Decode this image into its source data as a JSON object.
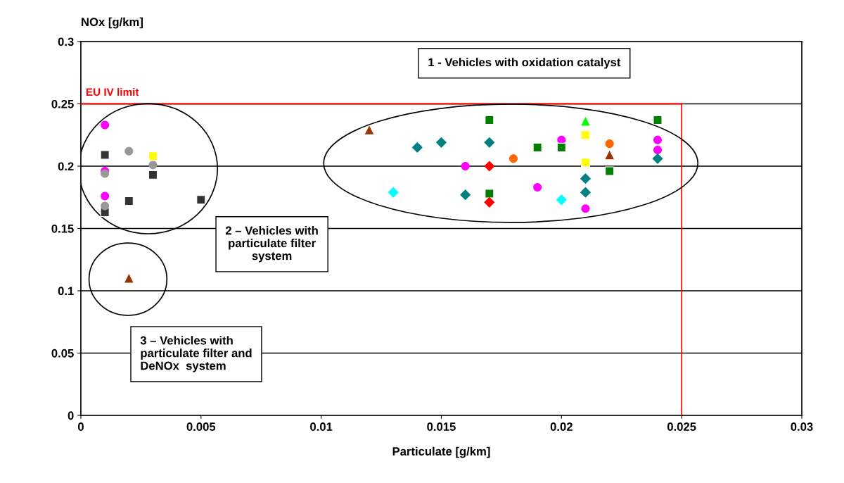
{
  "chart_data": {
    "type": "scatter",
    "xlabel": "Particulate [g/km]",
    "ylabel": "NOx [g/km]",
    "xlim": [
      0,
      0.03
    ],
    "xticks": [
      0,
      0.005,
      0.01,
      0.015,
      0.02,
      0.025,
      0.03
    ],
    "ylim": [
      0,
      0.3
    ],
    "yticks": [
      0,
      0.05,
      0.1,
      0.15,
      0.2,
      0.25,
      0.3
    ],
    "grid": "y",
    "ref_lines": [
      {
        "axis": "y",
        "value": 0.25,
        "label": "EU IV limit",
        "color": "#ff0000"
      },
      {
        "axis": "x",
        "value": 0.025,
        "color": "#ff0000"
      }
    ],
    "annotations": [
      "1 - Vehicles with oxidation catalyst",
      "2 – Vehicles with\nparticulate filter\nsystem",
      "3 – Vehicles with\nparticulate filter and\nDeNOx  system"
    ],
    "series": [
      {
        "color": "#ff00ff",
        "marker": "circle",
        "x": [
          0.001,
          0.001,
          0.001,
          0.016,
          0.019,
          0.02,
          0.021,
          0.024,
          0.024
        ],
        "values": [
          0.233,
          0.196,
          0.176,
          0.2,
          0.183,
          0.221,
          0.166,
          0.221,
          0.213
        ]
      },
      {
        "color": "#333333",
        "marker": "square",
        "x": [
          0.001,
          0.003,
          0.002,
          0.005,
          0.001
        ],
        "values": [
          0.209,
          0.193,
          0.172,
          0.173,
          0.163
        ]
      },
      {
        "color": "#999999",
        "marker": "circle",
        "x": [
          0.002,
          0.003,
          0.001,
          0.001
        ],
        "values": [
          0.212,
          0.201,
          0.194,
          0.168
        ]
      },
      {
        "color": "#ffff00",
        "marker": "square",
        "x": [
          0.003,
          0.021,
          0.021
        ],
        "values": [
          0.208,
          0.225,
          0.203
        ]
      },
      {
        "color": "#993300",
        "marker": "triangle",
        "x": [
          0.002,
          0.012,
          0.022
        ],
        "values": [
          0.11,
          0.229,
          0.209
        ]
      },
      {
        "color": "#008080",
        "marker": "diamond",
        "x": [
          0.014,
          0.015,
          0.017,
          0.016,
          0.021,
          0.021,
          0.024
        ],
        "values": [
          0.215,
          0.219,
          0.219,
          0.177,
          0.19,
          0.179,
          0.206
        ]
      },
      {
        "color": "#008000",
        "marker": "square",
        "x": [
          0.017,
          0.017,
          0.019,
          0.02,
          0.022,
          0.024
        ],
        "values": [
          0.237,
          0.178,
          0.215,
          0.215,
          0.196,
          0.237
        ]
      },
      {
        "color": "#ff6600",
        "marker": "circle",
        "x": [
          0.018,
          0.022
        ],
        "values": [
          0.206,
          0.218
        ]
      },
      {
        "color": "#ff0000",
        "marker": "diamond",
        "x": [
          0.017,
          0.017
        ],
        "values": [
          0.2,
          0.171
        ]
      },
      {
        "color": "#00ffff",
        "marker": "diamond",
        "x": [
          0.013,
          0.02
        ],
        "values": [
          0.179,
          0.173
        ]
      },
      {
        "color": "#00ff00",
        "marker": "triangle",
        "x": [
          0.021
        ],
        "values": [
          0.236
        ]
      }
    ]
  }
}
